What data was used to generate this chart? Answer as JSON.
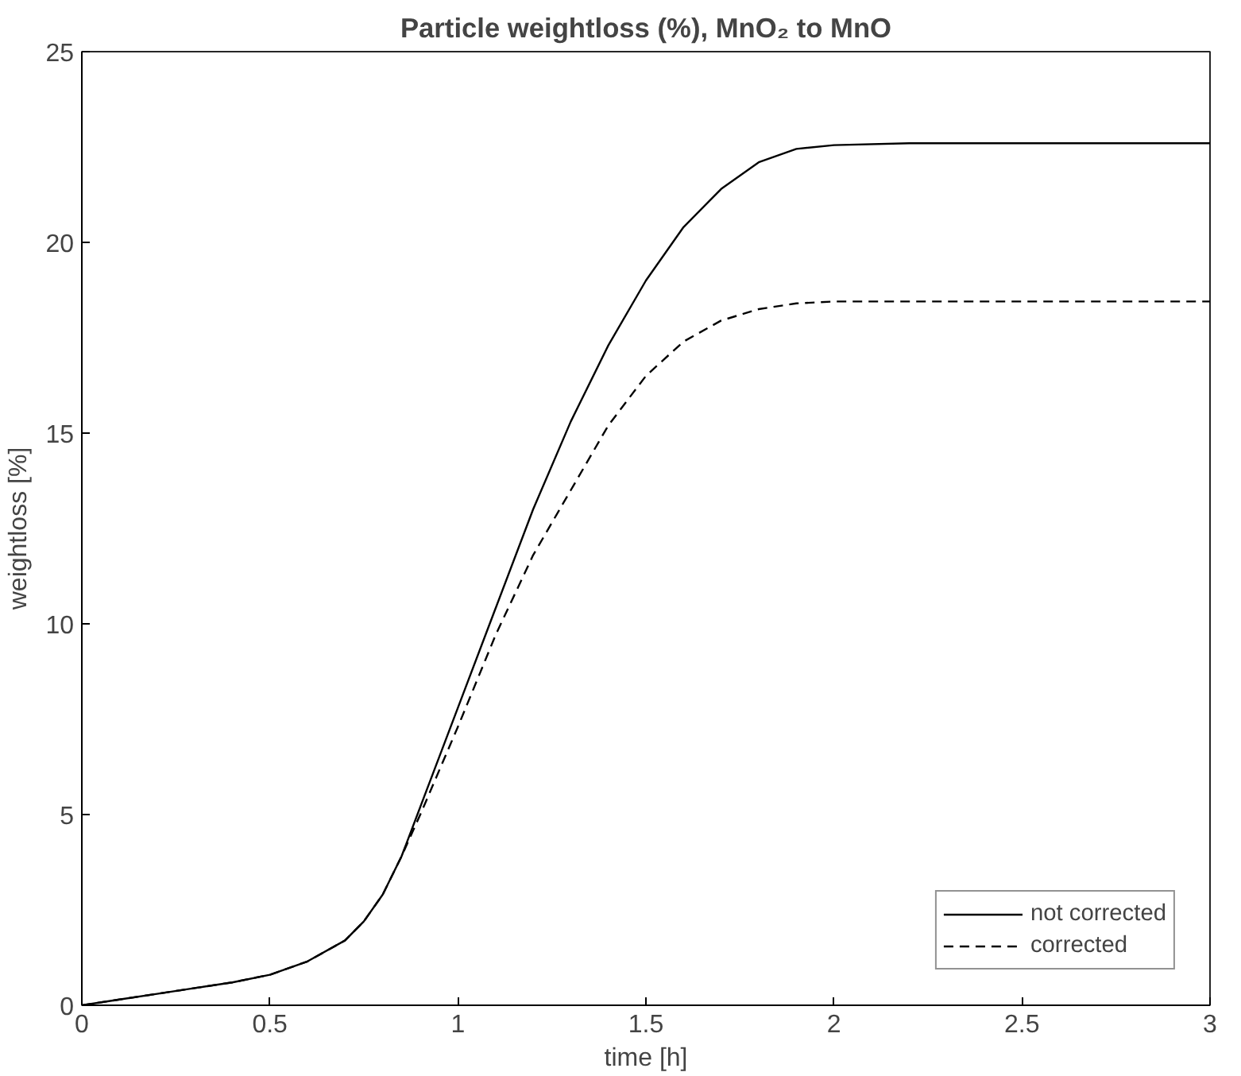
{
  "chart_data": {
    "type": "line",
    "title": "Particle weightloss (%), MnO₂ to MnO",
    "xlabel": "time [h]",
    "ylabel": "weightloss [%]",
    "xlim": [
      0,
      3
    ],
    "ylim": [
      0,
      25
    ],
    "xticks": [
      0,
      0.5,
      1,
      1.5,
      2,
      2.5,
      3
    ],
    "yticks": [
      0,
      5,
      10,
      15,
      20,
      25
    ],
    "grid": false,
    "legend": "bottom right",
    "series": [
      {
        "name": "not corrected",
        "color": "#000000",
        "line_style": "solid",
        "x": [
          0,
          0.1,
          0.2,
          0.3,
          0.4,
          0.5,
          0.6,
          0.7,
          0.75,
          0.8,
          0.85,
          0.9,
          1.0,
          1.1,
          1.2,
          1.3,
          1.4,
          1.5,
          1.6,
          1.7,
          1.8,
          1.9,
          2.0,
          2.2,
          2.5,
          3.0
        ],
        "values": [
          0,
          0.15,
          0.3,
          0.45,
          0.6,
          0.8,
          1.15,
          1.7,
          2.2,
          2.9,
          3.9,
          5.2,
          7.8,
          10.4,
          13.0,
          15.3,
          17.3,
          19.0,
          20.4,
          21.4,
          22.1,
          22.45,
          22.55,
          22.6,
          22.6,
          22.6
        ]
      },
      {
        "name": "corrected",
        "color": "#000000",
        "line_style": "dashed",
        "x": [
          0,
          0.1,
          0.2,
          0.3,
          0.4,
          0.5,
          0.6,
          0.7,
          0.75,
          0.8,
          0.85,
          0.9,
          1.0,
          1.1,
          1.2,
          1.3,
          1.4,
          1.5,
          1.6,
          1.7,
          1.8,
          1.9,
          2.0,
          2.2,
          2.5,
          3.0
        ],
        "values": [
          0,
          0.15,
          0.3,
          0.45,
          0.6,
          0.8,
          1.15,
          1.7,
          2.2,
          2.9,
          3.9,
          5.0,
          7.3,
          9.7,
          11.8,
          13.5,
          15.2,
          16.5,
          17.4,
          17.95,
          18.25,
          18.4,
          18.45,
          18.45,
          18.45,
          18.45
        ]
      }
    ]
  }
}
